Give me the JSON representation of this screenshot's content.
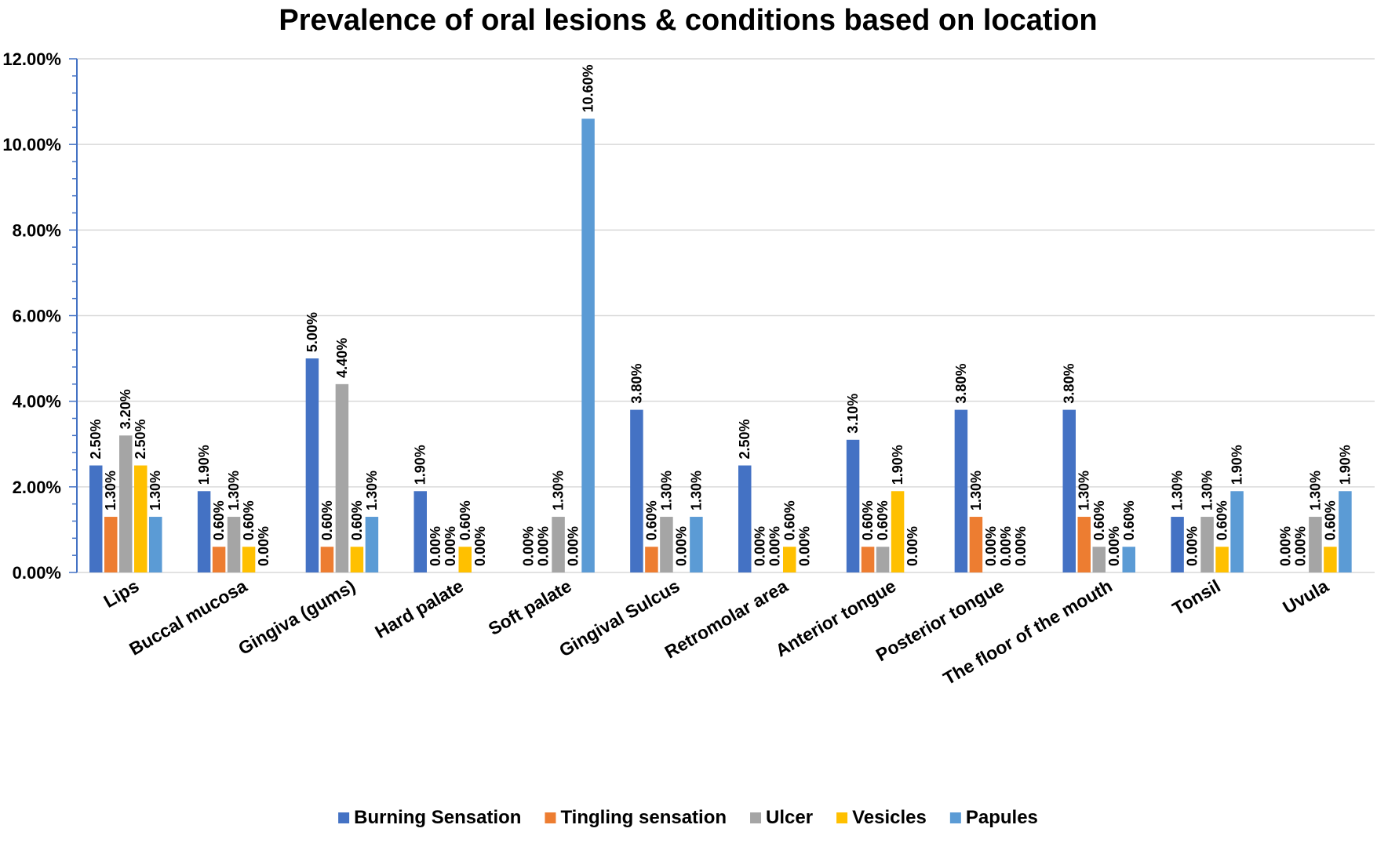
{
  "chart_data": {
    "type": "bar",
    "title": "Prevalence of oral lesions & conditions based on location",
    "xlabel": "",
    "ylabel": "",
    "ylim": [
      0,
      12
    ],
    "y_ticks": [
      "0.00%",
      "2.00%",
      "4.00%",
      "6.00%",
      "8.00%",
      "10.00%",
      "12.00%"
    ],
    "grid": true,
    "legend_position": "bottom",
    "categories": [
      "Lips",
      "Buccal mucosa",
      "Gingiva (gums)",
      "Hard palate",
      "Soft palate",
      "Gingival Sulcus",
      "Retromolar area",
      "Anterior tongue",
      "Posterior tongue",
      "The floor of the mouth",
      "Tonsil",
      "Uvula"
    ],
    "series": [
      {
        "name": "Burning Sensation",
        "color": "#4472C4",
        "values": [
          2.5,
          1.9,
          5.0,
          1.9,
          0.0,
          3.8,
          2.5,
          3.1,
          3.8,
          3.8,
          1.3,
          0.0
        ],
        "labels": [
          "2.50%",
          "1.90%",
          "5.00%",
          "1.90%",
          "0.00%",
          "3.80%",
          "2.50%",
          "3.10%",
          "3.80%",
          "3.80%",
          "1.30%",
          "0.00%"
        ]
      },
      {
        "name": "Tingling sensation",
        "color": "#ED7D31",
        "values": [
          1.3,
          0.6,
          0.6,
          0.0,
          0.0,
          0.6,
          0.0,
          0.6,
          1.3,
          1.3,
          0.0,
          0.0
        ],
        "labels": [
          "1.30%",
          "0.60%",
          "0.60%",
          "0.00%",
          "0.00%",
          "0.60%",
          "0.00%",
          "0.60%",
          "1.30%",
          "1.30%",
          "0.00%",
          "0.00%"
        ]
      },
      {
        "name": "Ulcer",
        "color": "#A5A5A5",
        "values": [
          3.2,
          1.3,
          4.4,
          0.0,
          1.3,
          1.3,
          0.0,
          0.6,
          0.0,
          0.6,
          1.3,
          1.3
        ],
        "labels": [
          "3.20%",
          "1.30%",
          "4.40%",
          "0.00%",
          "1.30%",
          "1.30%",
          "0.00%",
          "0.60%",
          "0.00%",
          "0.60%",
          "1.30%",
          "1.30%"
        ]
      },
      {
        "name": "Vesicles",
        "color": "#FFC000",
        "values": [
          2.5,
          0.6,
          0.6,
          0.6,
          0.0,
          0.0,
          0.6,
          1.9,
          0.0,
          0.0,
          0.6,
          0.6
        ],
        "labels": [
          "2.50%",
          "0.60%",
          "0.60%",
          "0.60%",
          "0.00%",
          "0.00%",
          "0.60%",
          "1.90%",
          "0.00%",
          "0.00%",
          "0.60%",
          "0.60%"
        ]
      },
      {
        "name": "Papules",
        "color": "#5B9BD5",
        "values": [
          1.3,
          0.0,
          1.3,
          0.0,
          10.6,
          1.3,
          0.0,
          0.0,
          0.0,
          0.6,
          1.9,
          1.9
        ],
        "labels": [
          "1.30%",
          "0.00%",
          "1.30%",
          "0.00%",
          "10.60%",
          "1.30%",
          "0.00%",
          "0.00%",
          "0.00%",
          "0.60%",
          "1.90%",
          "1.90%"
        ]
      }
    ]
  }
}
